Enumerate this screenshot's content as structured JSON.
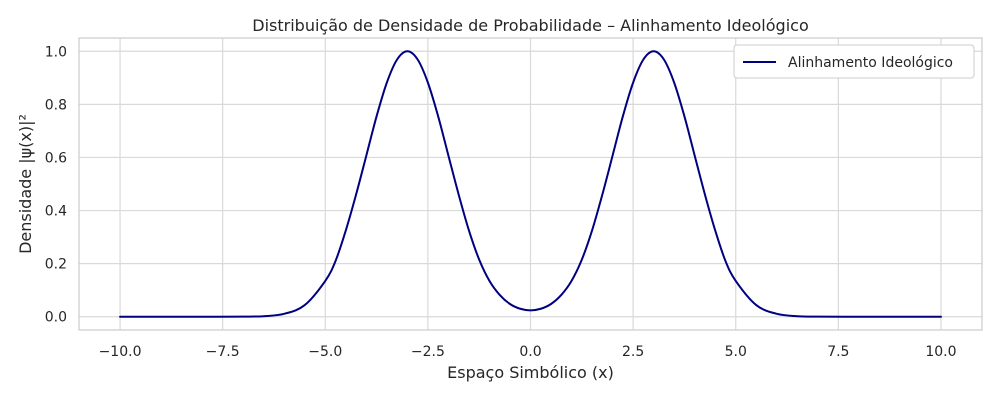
{
  "chart_data": {
    "type": "line",
    "title": "Distribuição de Densidade de Probabilidade – Alinhamento Ideológico",
    "xlabel": "Espaço Simbólico (x)",
    "ylabel": "Densidade |ψ(x)|²",
    "xlim": [
      -11,
      11
    ],
    "ylim": [
      -0.05,
      1.05
    ],
    "x_ticks": [
      -10.0,
      -7.5,
      -5.0,
      -2.5,
      0.0,
      2.5,
      5.0,
      7.5,
      10.0
    ],
    "x_tick_labels": [
      "−10.0",
      "−7.5",
      "−5.0",
      "−2.5",
      "0.0",
      "2.5",
      "5.0",
      "7.5",
      "10.0"
    ],
    "y_ticks": [
      0.0,
      0.2,
      0.4,
      0.6,
      0.8,
      1.0
    ],
    "y_tick_labels": [
      "0.0",
      "0.2",
      "0.4",
      "0.6",
      "0.8",
      "1.0"
    ],
    "grid": true,
    "legend_position": "top-right",
    "series": [
      {
        "name": "Alinhamento Ideológico",
        "color": "#000080",
        "x": [
          -10,
          -9,
          -8,
          -7,
          -6.5,
          -6,
          -5.5,
          -5,
          -4.75,
          -4.5,
          -4.25,
          -4,
          -3.75,
          -3.5,
          -3.25,
          -3,
          -2.75,
          -2.5,
          -2.25,
          -2,
          -1.75,
          -1.5,
          -1.25,
          -1,
          -0.75,
          -0.5,
          -0.25,
          0,
          0.25,
          0.5,
          0.75,
          1,
          1.25,
          1.5,
          1.75,
          2,
          2.25,
          2.5,
          2.75,
          3,
          3.25,
          3.5,
          3.75,
          4,
          4.25,
          4.5,
          4.75,
          5,
          5.5,
          6,
          6.5,
          7,
          8,
          9,
          10
        ],
        "y": [
          0.0,
          0.0,
          0.0,
          0.0003,
          0.002,
          0.011,
          0.044,
          0.135,
          0.21,
          0.325,
          0.46,
          0.607,
          0.755,
          0.882,
          0.969,
          1.0,
          0.969,
          0.882,
          0.755,
          0.607,
          0.46,
          0.325,
          0.215,
          0.135,
          0.082,
          0.048,
          0.03,
          0.024,
          0.03,
          0.048,
          0.082,
          0.135,
          0.215,
          0.325,
          0.46,
          0.607,
          0.755,
          0.882,
          0.969,
          1.0,
          0.969,
          0.882,
          0.755,
          0.607,
          0.46,
          0.325,
          0.21,
          0.135,
          0.044,
          0.011,
          0.002,
          0.0003,
          0.0,
          0.0,
          0.0
        ]
      }
    ]
  },
  "colors": {
    "grid": "#d9d9d9",
    "frame": "#cccccc",
    "text": "#262626",
    "line": "#000080"
  }
}
